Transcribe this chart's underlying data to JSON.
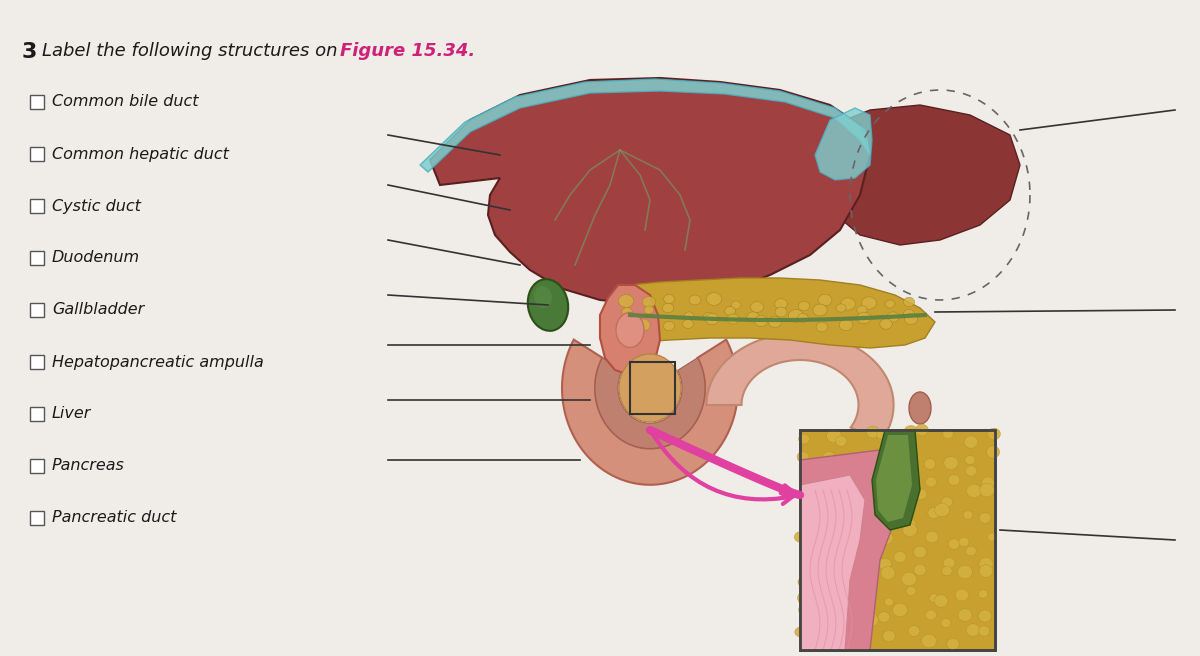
{
  "title_number": "3",
  "title_text": " Label the following structures on ",
  "title_highlight": "Figure 15.34.",
  "bg_color": "#f0ece8",
  "title_color": "#1a1a1a",
  "highlight_color": "#cc2277",
  "checkbox_items": [
    "Common bile duct",
    "Common hepatic duct",
    "Cystic duct",
    "Duodenum",
    "Gallbladder",
    "Hepatopancreatic ampulla",
    "Liver",
    "Pancreas",
    "Pancreatic duct"
  ],
  "item_fontsize": 11.5,
  "title_fontsize": 13,
  "number_fontsize": 16,
  "liver_dark": "#8b3535",
  "liver_mid": "#a04040",
  "liver_light": "#b85050",
  "peritoneum": "#7ecece",
  "gallbladder": "#4a8040",
  "pancreas_main": "#c8a030",
  "pancreas_light": "#d4b040",
  "duodenum_main": "#d4907a",
  "duodenum_inner": "#e0a898",
  "intestine_main": "#e0a898",
  "duct_pink": "#e8b0a0",
  "duct_ring": "#d07060",
  "green_duct": "#5a8040",
  "inset_bg": "#c8a030",
  "inset_pink_dark": "#c06878",
  "inset_pink_light": "#e8a8b8",
  "inset_green": "#5a7830",
  "arrow_color": "#e040a0",
  "line_color": "#333333",
  "dashed_color": "#666666"
}
